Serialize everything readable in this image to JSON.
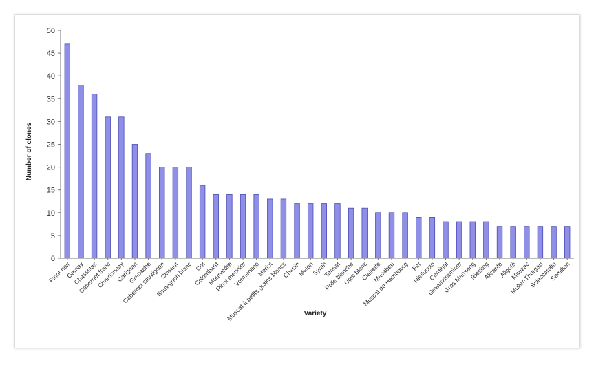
{
  "chart_data": {
    "type": "bar",
    "xlabel": "Variety",
    "ylabel": "Number of clones",
    "ylim": [
      0,
      50
    ],
    "yticks": [
      0,
      5,
      10,
      15,
      20,
      25,
      30,
      35,
      40,
      45,
      50
    ],
    "grid": false,
    "legend": "none",
    "bar_color": "#8f8fe8",
    "bar_edge_color": "#4b4bb5",
    "categories": [
      "Pinot noir",
      "Gamay",
      "Chasselas",
      "Cabernet franc",
      "Chardonnay",
      "Carignan",
      "Grenache",
      "Cabernet sauvignon",
      "Cinsaut",
      "Sauvignon blanc",
      "Cot",
      "Colombard",
      "Mourvèdre",
      "Pinot meunier",
      "Vermentino",
      "Merlot",
      "Muscat à petits grains blancs",
      "Chenin",
      "Melon",
      "Syrah",
      "Tannat",
      "Folle blanche",
      "Ugni blanc",
      "Clairette",
      "Macabeu",
      "Muscat de Hambourg",
      "Fer",
      "Nielluccio",
      "Cardinal",
      "Gewurztraminer",
      "Gros Manseng",
      "Riesling",
      "Alicante",
      "Aligoté",
      "Mauzac",
      "Müller-Thurgau",
      "Sciaccarello",
      "Semillon"
    ],
    "values": [
      47,
      38,
      36,
      31,
      31,
      25,
      23,
      20,
      20,
      20,
      16,
      14,
      14,
      14,
      14,
      13,
      13,
      12,
      12,
      12,
      12,
      11,
      11,
      10,
      10,
      10,
      9,
      9,
      8,
      8,
      8,
      8,
      7,
      7,
      7,
      7,
      7,
      7
    ]
  }
}
